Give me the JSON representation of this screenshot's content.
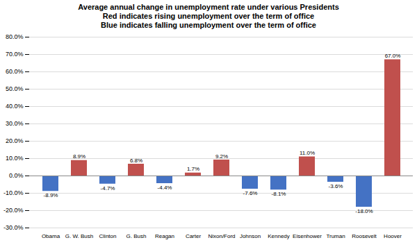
{
  "chart_data": {
    "type": "bar",
    "title": "Average annual change in unemployment rate under various Presidents\nRed indicates rising unemployment over the term of office\nBlue indicates falling unemployment over the term of office",
    "categories": [
      "Obama",
      "G. W. Bush",
      "Clinton",
      "G. Bush",
      "Reagan",
      "Carter",
      "Nixon/Ford",
      "Johnson",
      "Kennedy",
      "Eisenhower",
      "Truman",
      "Roosevelt",
      "Hoover"
    ],
    "values": [
      -8.9,
      8.9,
      -4.7,
      6.8,
      -4.4,
      1.7,
      9.2,
      -7.6,
      -8.1,
      11.0,
      -3.6,
      -18.0,
      67.0
    ],
    "value_labels": [
      "-8.9%",
      "8.9%",
      "-4.7%",
      "6.8%",
      "-4.4%",
      "1.7%",
      "9.2%",
      "-7.6%",
      "-8.1%",
      "11.0%",
      "-3.6%",
      "-18.0%",
      "67.0%"
    ],
    "colors": [
      "#4472c4",
      "#c0504d",
      "#4472c4",
      "#c0504d",
      "#4472c4",
      "#c0504d",
      "#c0504d",
      "#4472c4",
      "#4472c4",
      "#c0504d",
      "#4472c4",
      "#4472c4",
      "#c0504d"
    ],
    "data_labels": true,
    "ylim": [
      -30,
      80
    ],
    "yticks": [
      {
        "value": -30,
        "label": "-30.0%"
      },
      {
        "value": -20,
        "label": "-20.0%"
      },
      {
        "value": -10,
        "label": "-10.0%"
      },
      {
        "value": 0,
        "label": "0.0%"
      },
      {
        "value": 10,
        "label": "10.0%"
      },
      {
        "value": 20,
        "label": "20.0%"
      },
      {
        "value": 30,
        "label": "30.0%"
      },
      {
        "value": 40,
        "label": "40.0%"
      },
      {
        "value": 50,
        "label": "50.0%"
      },
      {
        "value": 60,
        "label": "60.0%"
      },
      {
        "value": 70,
        "label": "70.0%"
      },
      {
        "value": 80,
        "label": "80.0%"
      }
    ],
    "grid": true
  }
}
